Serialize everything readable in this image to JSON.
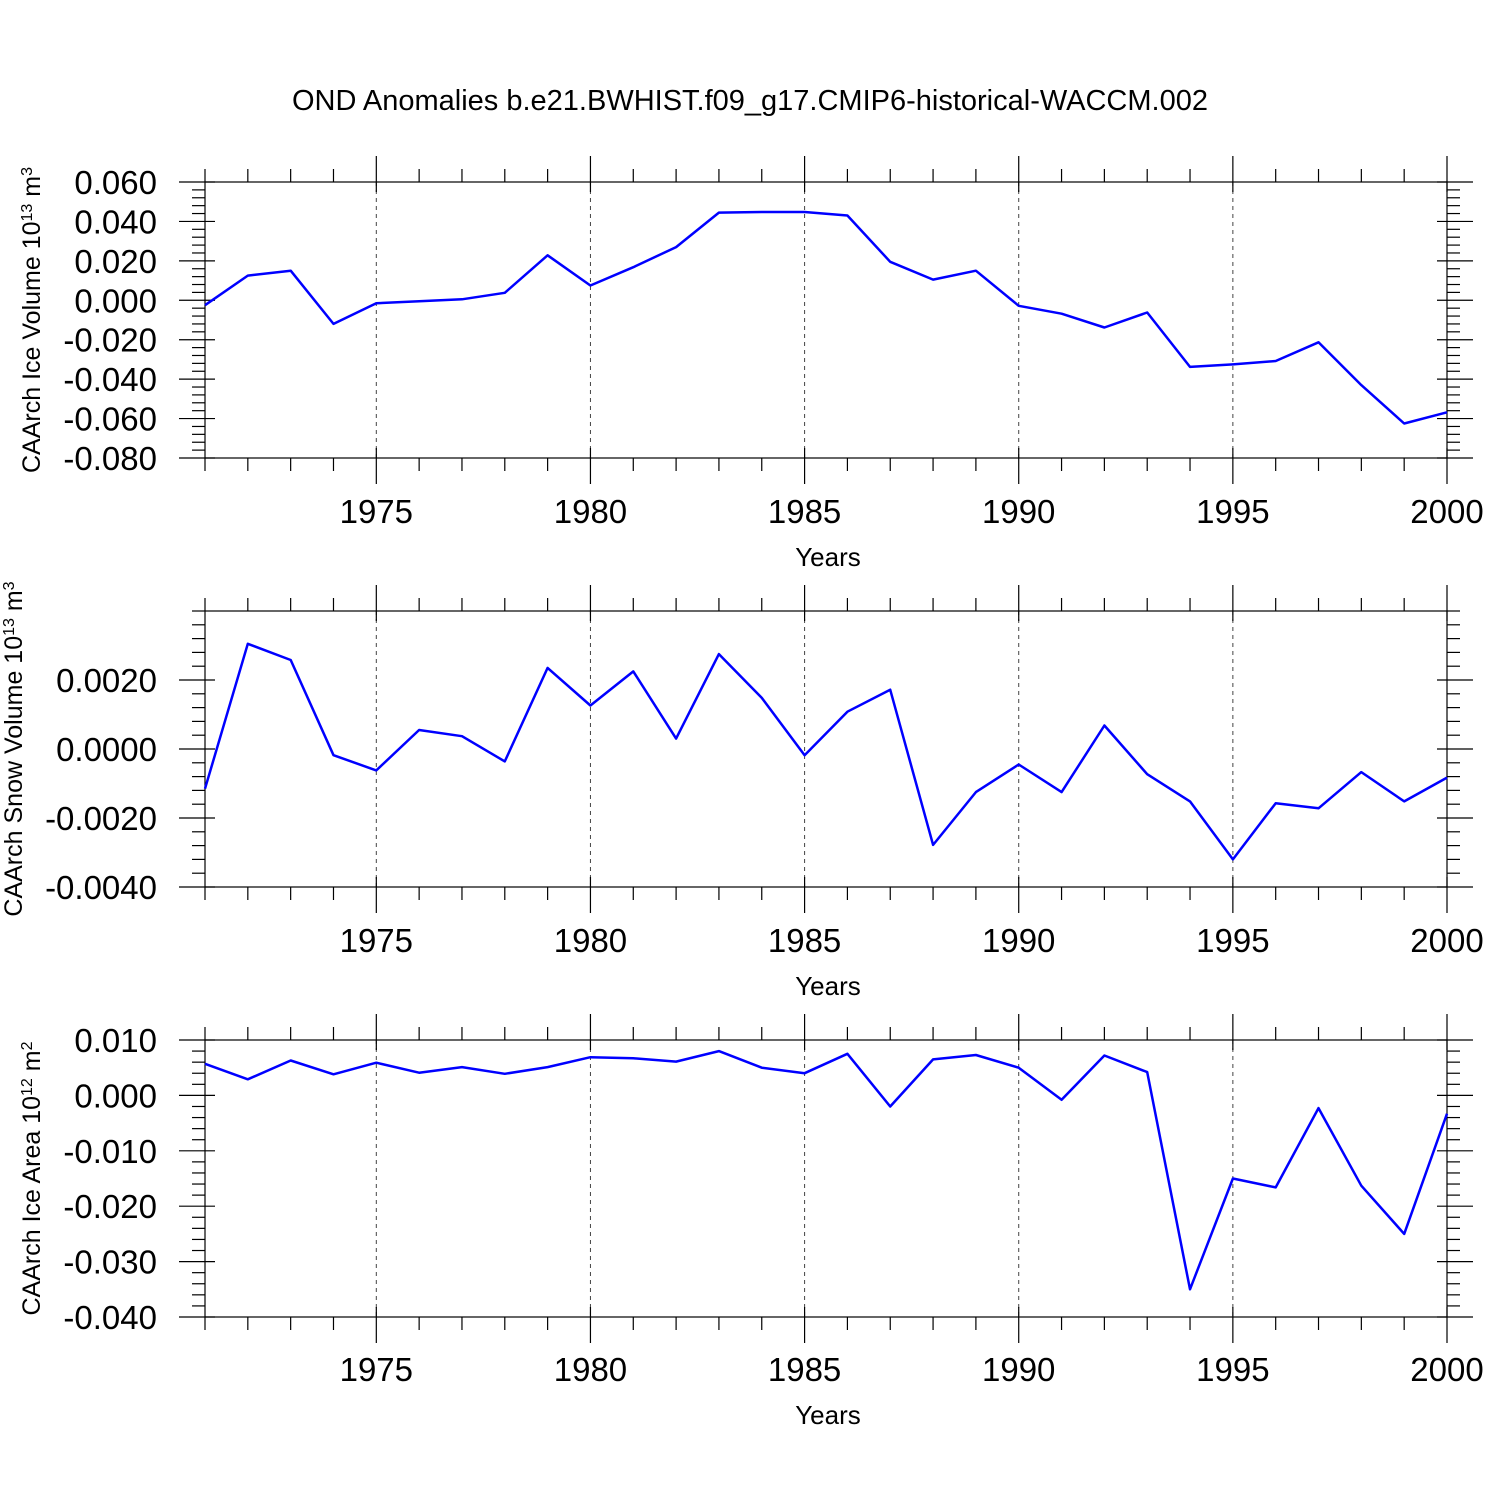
{
  "figure": {
    "title": "OND Anomalies b.e21.BWHIST.f09_g17.CMIP6-historical-WACCM.002"
  },
  "colors": {
    "series": "#0000ff",
    "axes": "#000000"
  },
  "chart_data": [
    {
      "type": "line",
      "title": "OND Anomalies b.e21.BWHIST.f09_g17.CMIP6-historical-WACCM.002",
      "xlabel": "Years",
      "ylabel": "CAArch Ice Volume 10",
      "ylabel_exp": "13",
      "ylabel_unit": " m",
      "ylabel_unit_exp": "3",
      "xlim": [
        1971,
        2000
      ],
      "ylim": [
        -0.08,
        0.06
      ],
      "x_ticks": [
        1975,
        1980,
        1985,
        1990,
        1995,
        2000
      ],
      "x_tick_labels": [
        "1975",
        "1980",
        "1985",
        "1990",
        "1995",
        "2000"
      ],
      "y_ticks": [
        -0.08,
        -0.06,
        -0.04,
        -0.02,
        0.0,
        0.02,
        0.04,
        0.06
      ],
      "y_tick_labels": [
        "-0.080",
        "-0.060",
        "-0.040",
        "-0.020",
        "0.000",
        "0.020",
        "0.040",
        "0.060"
      ],
      "y_minor_step": 0.004,
      "x": [
        1971,
        1972,
        1973,
        1974,
        1975,
        1976,
        1977,
        1978,
        1979,
        1980,
        1981,
        1982,
        1983,
        1984,
        1985,
        1986,
        1987,
        1988,
        1989,
        1990,
        1991,
        1992,
        1993,
        1994,
        1995,
        1996,
        1997,
        1998,
        1999,
        2000
      ],
      "series": [
        {
          "name": "CAArch Ice Volume",
          "values": [
            -0.0025,
            0.0125,
            0.015,
            -0.012,
            -0.0015,
            -0.0005,
            0.0005,
            0.0038,
            0.0228,
            0.0075,
            0.0168,
            0.027,
            0.0445,
            0.0448,
            0.0448,
            0.043,
            0.0195,
            0.0105,
            0.015,
            -0.0028,
            -0.0068,
            -0.0138,
            -0.0062,
            -0.0338,
            -0.0325,
            -0.0308,
            -0.0213,
            -0.043,
            -0.0625,
            -0.0568
          ]
        }
      ]
    },
    {
      "type": "line",
      "xlabel": "Years",
      "ylabel": "CAArch Snow Volume 10",
      "ylabel_exp": "13",
      "ylabel_unit": " m",
      "ylabel_unit_exp": "3",
      "xlim": [
        1971,
        2000
      ],
      "ylim": [
        -0.004,
        0.004
      ],
      "x_ticks": [
        1975,
        1980,
        1985,
        1990,
        1995,
        2000
      ],
      "x_tick_labels": [
        "1975",
        "1980",
        "1985",
        "1990",
        "1995",
        "2000"
      ],
      "y_ticks": [
        -0.004,
        -0.002,
        0.0,
        0.002
      ],
      "y_tick_labels": [
        "-0.0040",
        "-0.0020",
        "0.0000",
        "0.0020"
      ],
      "y_minor_step": 0.0004,
      "x": [
        1971,
        1972,
        1973,
        1974,
        1975,
        1976,
        1977,
        1978,
        1979,
        1980,
        1981,
        1982,
        1983,
        1984,
        1985,
        1986,
        1987,
        1988,
        1989,
        1990,
        1991,
        1992,
        1993,
        1994,
        1995,
        1996,
        1997,
        1998,
        1999,
        2000
      ],
      "series": [
        {
          "name": "CAArch Snow Volume",
          "values": [
            -0.00115,
            0.00305,
            0.00258,
            -0.00018,
            -0.00062,
            0.00055,
            0.00037,
            -0.00036,
            0.00235,
            0.00126,
            0.00225,
            0.0003,
            0.00275,
            0.00148,
            -0.00018,
            0.00108,
            0.00172,
            -0.00278,
            -0.00125,
            -0.00045,
            -0.00125,
            0.00068,
            -0.00073,
            -0.00152,
            -0.0032,
            -0.00157,
            -0.00172,
            -0.00067,
            -0.00152,
            -0.00083
          ]
        }
      ]
    },
    {
      "type": "line",
      "xlabel": "Years",
      "ylabel": "CAArch Ice Area 10",
      "ylabel_exp": "12",
      "ylabel_unit": " m",
      "ylabel_unit_exp": "2",
      "xlim": [
        1971,
        2000
      ],
      "ylim": [
        -0.04,
        0.01
      ],
      "x_ticks": [
        1975,
        1980,
        1985,
        1990,
        1995,
        2000
      ],
      "x_tick_labels": [
        "1975",
        "1980",
        "1985",
        "1990",
        "1995",
        "2000"
      ],
      "y_ticks": [
        -0.04,
        -0.03,
        -0.02,
        -0.01,
        0.0,
        0.01
      ],
      "y_tick_labels": [
        "-0.040",
        "-0.030",
        "-0.020",
        "-0.010",
        "0.000",
        "0.010"
      ],
      "y_minor_step": 0.002,
      "x": [
        1971,
        1972,
        1973,
        1974,
        1975,
        1976,
        1977,
        1978,
        1979,
        1980,
        1981,
        1982,
        1983,
        1984,
        1985,
        1986,
        1987,
        1988,
        1989,
        1990,
        1991,
        1992,
        1993,
        1994,
        1995,
        1996,
        1997,
        1998,
        1999,
        2000
      ],
      "series": [
        {
          "name": "CAArch Ice Area",
          "values": [
            0.0057,
            0.0029,
            0.0063,
            0.0038,
            0.0059,
            0.0041,
            0.0051,
            0.0039,
            0.0051,
            0.0069,
            0.0067,
            0.0061,
            0.008,
            0.005,
            0.004,
            0.0075,
            -0.002,
            0.0065,
            0.0073,
            0.005,
            -0.0008,
            0.0072,
            0.0042,
            -0.035,
            -0.015,
            -0.0166,
            -0.0023,
            -0.0163,
            -0.025,
            -0.0033
          ]
        }
      ]
    }
  ]
}
